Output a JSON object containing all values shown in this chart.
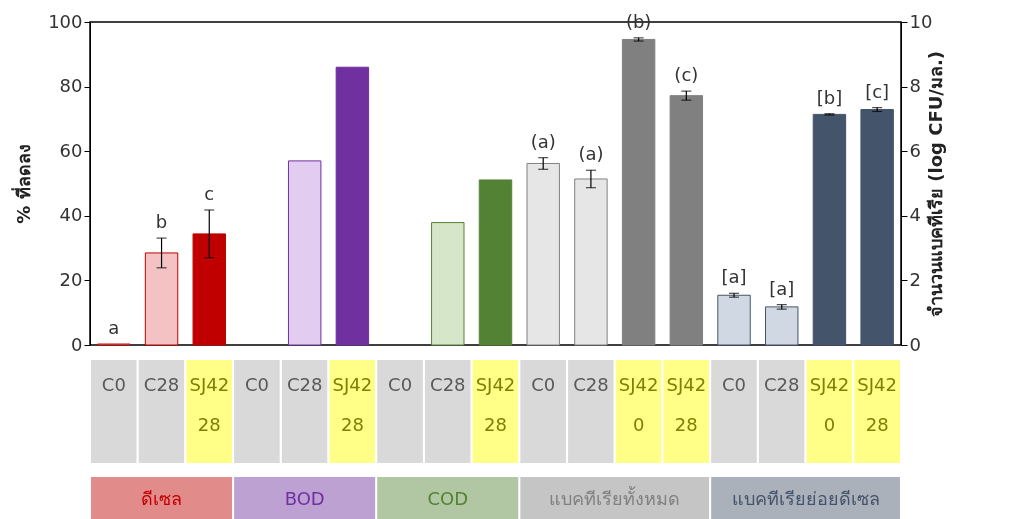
{
  "chart_data": {
    "type": "bar",
    "ylabel": "% ที่ลดลง",
    "y2label": "จำนวนแบคทีเรีย (log CFU/มล.)",
    "categories": [
      "C0",
      "C28",
      "SJ42 28",
      "C0",
      "C28",
      "SJ42 28",
      "C0",
      "C28",
      "SJ42 28",
      "C0",
      "C28",
      "SJ42 0",
      "SJ42 28",
      "C0",
      "C28",
      "SJ42 0",
      "SJ42 28"
    ],
    "ylim": [
      0,
      100
    ],
    "yticks": [
      0,
      20,
      40,
      60,
      80,
      100
    ],
    "y2lim": [
      0,
      10
    ],
    "y2ticks": [
      0,
      2,
      4,
      6,
      8,
      10
    ],
    "series": [
      {
        "name": "ดีเซล",
        "color": "#c00000",
        "colors": [
          "#f4c2c2",
          "#f4c2c2",
          "#c00000",
          null,
          null,
          null,
          null,
          null,
          null,
          null,
          null,
          null,
          null,
          null,
          null,
          null,
          null
        ],
        "values": [
          0.3,
          28.5,
          34.4,
          null,
          null,
          null,
          null,
          null,
          null,
          null,
          null,
          null,
          null,
          null,
          null,
          null,
          null
        ],
        "errors": [
          null,
          4.6,
          7.4,
          null,
          null,
          null,
          null,
          null,
          null,
          null,
          null,
          null,
          null,
          null,
          null,
          null,
          null
        ],
        "value_labels": [
          "a",
          "b",
          "c",
          null,
          null,
          null,
          null,
          null,
          null,
          null,
          null,
          null,
          null,
          null,
          null,
          null,
          null
        ]
      },
      {
        "name": "BOD",
        "color": "#7030a0",
        "colors": [
          null,
          null,
          null,
          null,
          "#e2cdf0",
          "#7030a0",
          null,
          null,
          null,
          null,
          null,
          null,
          null,
          null,
          null,
          null,
          null
        ],
        "values": [
          null,
          null,
          null,
          null,
          57,
          86,
          null,
          null,
          null,
          null,
          null,
          null,
          null,
          null,
          null,
          null,
          null
        ]
      },
      {
        "name": "COD",
        "color": "#548235",
        "colors": [
          null,
          null,
          null,
          null,
          null,
          null,
          null,
          "#d6e6c8",
          "#548235",
          null,
          null,
          null,
          null,
          null,
          null,
          null,
          null
        ],
        "values": [
          null,
          null,
          null,
          null,
          null,
          null,
          null,
          37.9,
          51.1,
          null,
          null,
          null,
          null,
          null,
          null,
          null,
          null
        ]
      },
      {
        "name": "แบคทีเรียทั้งหมด",
        "color": "#808080",
        "axis": "y2",
        "colors": [
          null,
          null,
          null,
          null,
          null,
          null,
          null,
          null,
          null,
          "#e6e6e6",
          "#e6e6e6",
          "#808080",
          "#808080",
          null,
          null,
          null,
          null
        ],
        "values": [
          null,
          null,
          null,
          null,
          null,
          null,
          null,
          null,
          null,
          5.62,
          5.14,
          9.46,
          7.72,
          null,
          null,
          null,
          null
        ],
        "errors": [
          null,
          null,
          null,
          null,
          null,
          null,
          null,
          null,
          null,
          0.18,
          0.27,
          0.05,
          0.14,
          null,
          null,
          null,
          null
        ],
        "value_labels": [
          null,
          null,
          null,
          null,
          null,
          null,
          null,
          null,
          null,
          "(a)",
          "(a)",
          "(b)",
          "(c)",
          null,
          null,
          null,
          null
        ]
      },
      {
        "name": "แบคทีเรียย่อยดีเซล",
        "color": "#44546a",
        "axis": "y2",
        "colors": [
          null,
          null,
          null,
          null,
          null,
          null,
          null,
          null,
          null,
          null,
          null,
          null,
          null,
          "#d0d8e4",
          "#d0d8e4",
          "#44546a",
          "#44546a"
        ],
        "values": [
          null,
          null,
          null,
          null,
          null,
          null,
          null,
          null,
          null,
          null,
          null,
          null,
          null,
          1.54,
          1.18,
          7.14,
          7.29
        ],
        "errors": [
          null,
          null,
          null,
          null,
          null,
          null,
          null,
          null,
          null,
          null,
          null,
          null,
          null,
          0.06,
          0.07,
          0.02,
          0.06
        ],
        "value_labels": [
          null,
          null,
          null,
          null,
          null,
          null,
          null,
          null,
          null,
          null,
          null,
          null,
          null,
          "[a]",
          "[a]",
          "[b]",
          "[c]"
        ]
      }
    ]
  }
}
